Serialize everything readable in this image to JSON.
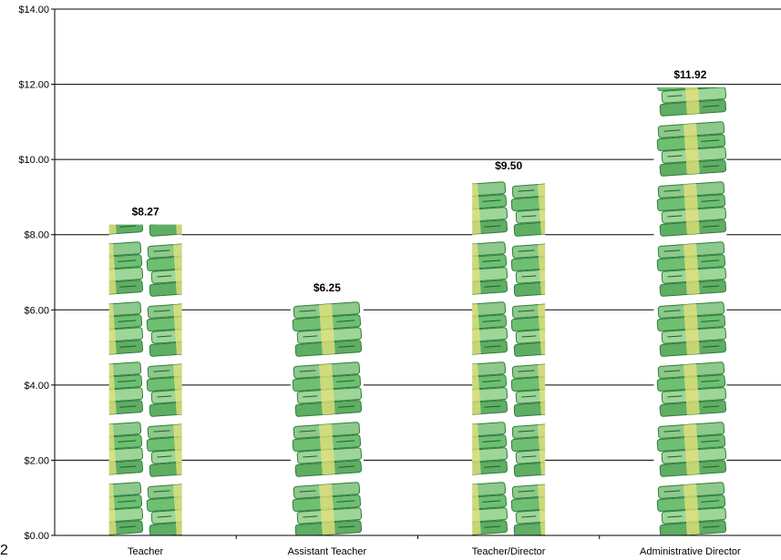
{
  "chart_data": {
    "type": "bar",
    "categories": [
      "Teacher",
      "Assistant Teacher",
      "Teacher/Director",
      "Administrative Director"
    ],
    "values": [
      8.27,
      6.25,
      9.5,
      11.92
    ],
    "data_labels": [
      "$8.27",
      "$6.25",
      "$9.50",
      "$11.92"
    ],
    "y_ticks": [
      {
        "value": 0,
        "label": "$0.00"
      },
      {
        "value": 2,
        "label": "$2.00"
      },
      {
        "value": 4,
        "label": "$4.00"
      },
      {
        "value": 6,
        "label": "$6.00"
      },
      {
        "value": 8,
        "label": "$8.00"
      },
      {
        "value": 10,
        "label": "$10.00"
      },
      {
        "value": 12,
        "label": "$12.00"
      },
      {
        "value": 14,
        "label": "$14.00"
      }
    ],
    "ylim": [
      0,
      14
    ],
    "grid": true,
    "legend": "none",
    "bar_fill": "stacked money-bundle pictograph",
    "colors": {
      "money_light": "#b7dfb0",
      "money_mid": "#6fbf73",
      "money_dark": "#2f7d3a",
      "money_band": "#e8e27a",
      "grid": "#000000"
    }
  },
  "stray_text": "2"
}
